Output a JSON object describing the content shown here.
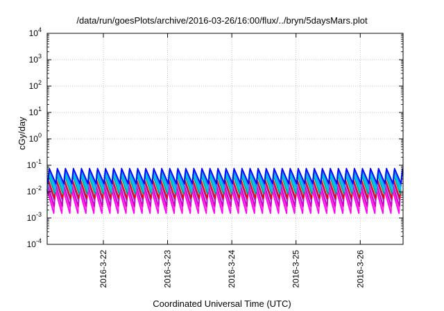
{
  "chart_data": {
    "type": "line",
    "title": "/data/run/goesPlots/archive/2016-03-26/16:00/flux/../bryn/5daysMars.plot",
    "xlabel": "Coordinated Universal Time (UTC)",
    "ylabel": "cGy/day",
    "yscale": "log",
    "ylim": [
      0.0001,
      10000
    ],
    "xlim": [
      "2016-03-21 03:00",
      "2016-03-26 16:00"
    ],
    "grid": true,
    "x_ticks": [
      "2016-3-22",
      "2016-3-23",
      "2016-3-24",
      "2016-3-25",
      "2016-3-26"
    ],
    "y_ticks": [
      {
        "base": "10",
        "exp": "-4"
      },
      {
        "base": "10",
        "exp": "-3"
      },
      {
        "base": "10",
        "exp": "-2"
      },
      {
        "base": "10",
        "exp": "-1"
      },
      {
        "base": "10",
        "exp": "0"
      },
      {
        "base": "10",
        "exp": "1"
      },
      {
        "base": "10",
        "exp": "2"
      },
      {
        "base": "10",
        "exp": "3"
      },
      {
        "base": "10",
        "exp": "4"
      }
    ],
    "pattern": {
      "period_hours": 3,
      "description_free": true
    },
    "series": [
      {
        "color": "#ff00ff",
        "peak": 0.012,
        "trough": 0.0015
      },
      {
        "color": "#ff33cc",
        "peak": 0.015,
        "trough": 0.0022
      },
      {
        "color": "#cc00cc",
        "peak": 0.018,
        "trough": 0.0028
      },
      {
        "color": "#8a2be2",
        "peak": 0.025,
        "trough": 0.0045
      },
      {
        "color": "#ff0000",
        "peak": 0.03,
        "trough": 0.0055
      },
      {
        "color": "#009999",
        "peak": 0.045,
        "trough": 0.008
      },
      {
        "color": "#00cccc",
        "peak": 0.05,
        "trough": 0.01
      },
      {
        "color": "#00bfff",
        "peak": 0.06,
        "trough": 0.013
      },
      {
        "color": "#1e90ff",
        "peak": 0.065,
        "trough": 0.016
      },
      {
        "color": "#0000ff",
        "peak": 0.075,
        "trough": 0.02
      }
    ]
  }
}
